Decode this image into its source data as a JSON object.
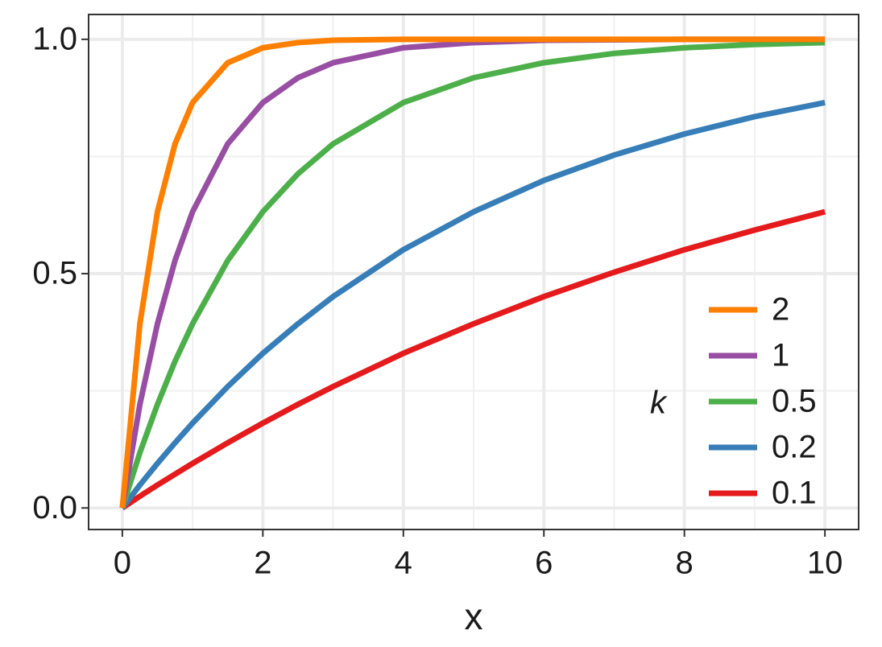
{
  "chart_data": {
    "type": "line",
    "x_label": "x",
    "legend_title": "k",
    "legend_position": "bottom-right",
    "x": [
      0,
      0.25,
      0.5,
      0.75,
      1,
      1.5,
      2,
      2.5,
      3,
      4,
      5,
      6,
      7,
      8,
      9,
      10
    ],
    "series": [
      {
        "name": "2",
        "color": "#ff7f00",
        "values": [
          0,
          0.393,
          0.632,
          0.777,
          0.865,
          0.95,
          0.982,
          0.993,
          0.998,
          1,
          1,
          1,
          1,
          1,
          1,
          1
        ]
      },
      {
        "name": "1",
        "color": "#984ea3",
        "values": [
          0,
          0.221,
          0.393,
          0.528,
          0.632,
          0.777,
          0.865,
          0.918,
          0.95,
          0.982,
          0.993,
          0.998,
          0.999,
          1,
          1,
          1
        ]
      },
      {
        "name": "0.5",
        "color": "#4daf4a",
        "values": [
          0,
          0.118,
          0.221,
          0.313,
          0.393,
          0.528,
          0.632,
          0.713,
          0.777,
          0.865,
          0.918,
          0.95,
          0.97,
          0.982,
          0.989,
          0.993
        ]
      },
      {
        "name": "0.2",
        "color": "#377eb8",
        "values": [
          0,
          0.049,
          0.095,
          0.139,
          0.181,
          0.259,
          0.33,
          0.393,
          0.451,
          0.551,
          0.632,
          0.699,
          0.753,
          0.798,
          0.835,
          0.865
        ]
      },
      {
        "name": "0.1",
        "color": "#e41a1c",
        "values": [
          0,
          0.025,
          0.049,
          0.072,
          0.095,
          0.139,
          0.181,
          0.221,
          0.259,
          0.33,
          0.393,
          0.451,
          0.503,
          0.551,
          0.593,
          0.632
        ]
      }
    ],
    "xlim": [
      -0.48,
      10.48
    ],
    "ylim": [
      -0.046,
      1.053
    ],
    "xticks": [
      0,
      2,
      4,
      6,
      8,
      10
    ],
    "yticks": [
      {
        "value": 0,
        "label": "0.0"
      },
      {
        "value": 0.5,
        "label": "0.5"
      },
      {
        "value": 1,
        "label": "1.0"
      }
    ],
    "x_minor_ticks": [
      1,
      3,
      5,
      7,
      9
    ],
    "y_minor_ticks": [
      0.25,
      0.75
    ],
    "grid": true
  }
}
